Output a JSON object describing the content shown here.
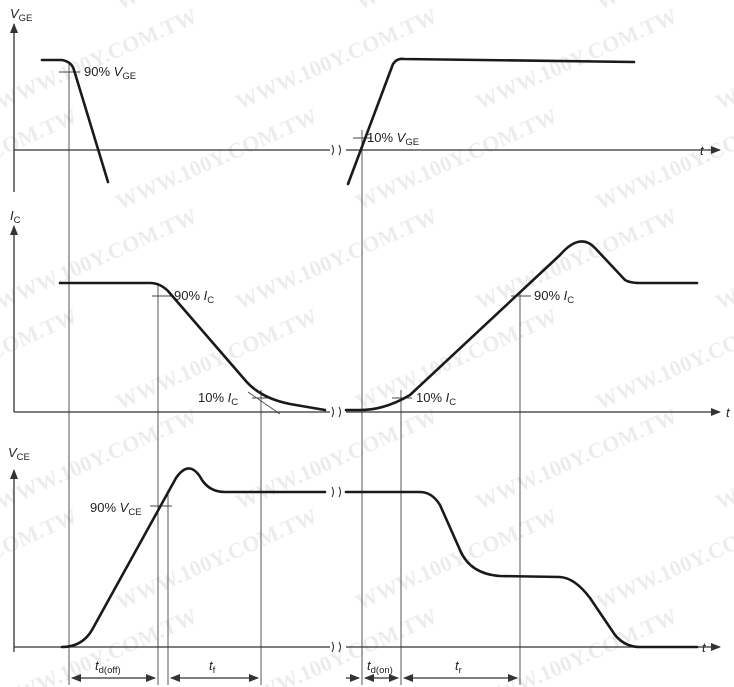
{
  "watermark": "WWW.100Y.COM.TW",
  "axes": {
    "vge": {
      "sym": "V",
      "sub": "GE",
      "t": "t"
    },
    "ic": {
      "sym": "I",
      "sub": "C",
      "t": "t"
    },
    "vce": {
      "sym": "V",
      "sub": "CE",
      "t": "t"
    }
  },
  "annotations": {
    "vge90": {
      "pct": "90% ",
      "sym": "V",
      "sub": "GE"
    },
    "vge10": {
      "pct": "10% ",
      "sym": "V",
      "sub": "GE"
    },
    "ic90a": {
      "pct": "90% ",
      "sym": "I",
      "sub": "C"
    },
    "ic10a": {
      "pct": "10% ",
      "sym": "I",
      "sub": "C"
    },
    "ic10b": {
      "pct": "10% ",
      "sym": "I",
      "sub": "C"
    },
    "ic90b": {
      "pct": "90% ",
      "sym": "I",
      "sub": "C"
    },
    "vce90": {
      "pct": "90% ",
      "sym": "V",
      "sub": "CE"
    }
  },
  "intervals": {
    "tdoff": {
      "sym": "t",
      "sub": "d(off)"
    },
    "tf": {
      "sym": "t",
      "sub": "f"
    },
    "tdon": {
      "sym": "t",
      "sub": "d(on)"
    },
    "tr": {
      "sym": "t",
      "sub": "r"
    }
  }
}
